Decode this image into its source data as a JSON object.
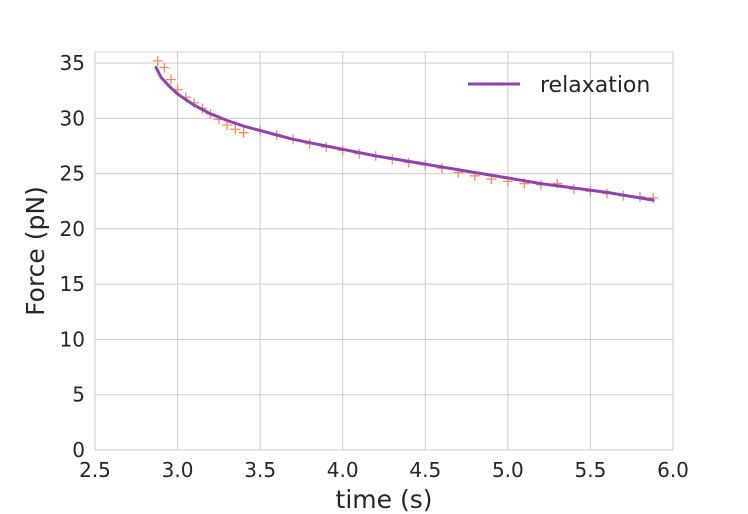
{
  "chart_data": {
    "type": "scatter",
    "xlabel": "time (s)",
    "ylabel": "Force (pN)",
    "xlim": [
      2.5,
      6.0
    ],
    "ylim": [
      0,
      36
    ],
    "xticks": [
      "2.5",
      "3.0",
      "3.5",
      "4.0",
      "4.5",
      "5.0",
      "5.5",
      "6.0"
    ],
    "yticks": [
      "0",
      "5",
      "10",
      "15",
      "20",
      "25",
      "30",
      "35"
    ],
    "grid": true,
    "legend_position": "top-right",
    "series": [
      {
        "kind": "scatter",
        "marker": "plus",
        "color": "#f98b5c",
        "x": [
          2.88,
          2.92,
          2.96,
          3.0,
          3.05,
          3.1,
          3.15,
          3.2,
          3.25,
          3.3,
          3.35,
          3.4,
          3.5,
          3.6,
          3.7,
          3.8,
          3.9,
          4.0,
          4.1,
          4.2,
          4.3,
          4.4,
          4.5,
          4.6,
          4.7,
          4.8,
          4.9,
          5.0,
          5.1,
          5.2,
          5.3,
          5.4,
          5.5,
          5.6,
          5.7,
          5.8,
          5.88
        ],
        "y": [
          35.2,
          34.6,
          33.5,
          32.6,
          31.9,
          31.4,
          30.9,
          30.4,
          29.9,
          29.4,
          29.0,
          28.7,
          28.9,
          28.5,
          28.1,
          27.7,
          27.4,
          27.1,
          26.8,
          26.6,
          26.3,
          26.0,
          25.8,
          25.5,
          25.1,
          24.8,
          24.5,
          24.3,
          24.1,
          24.0,
          24.1,
          23.6,
          23.4,
          23.2,
          23.0,
          22.9,
          22.8
        ]
      },
      {
        "name": "relaxation",
        "kind": "line",
        "color": "#8e44ad",
        "x": [
          2.87,
          2.9,
          2.95,
          3.0,
          3.1,
          3.2,
          3.3,
          3.4,
          3.5,
          3.6,
          3.7,
          3.8,
          3.9,
          4.0,
          4.2,
          4.4,
          4.6,
          4.8,
          5.0,
          5.2,
          5.4,
          5.6,
          5.8,
          5.88
        ],
        "y": [
          34.6,
          33.7,
          32.9,
          32.2,
          31.2,
          30.4,
          29.8,
          29.3,
          28.9,
          28.5,
          28.1,
          27.8,
          27.5,
          27.2,
          26.6,
          26.1,
          25.6,
          25.1,
          24.6,
          24.1,
          23.7,
          23.3,
          22.8,
          22.6
        ]
      }
    ]
  }
}
